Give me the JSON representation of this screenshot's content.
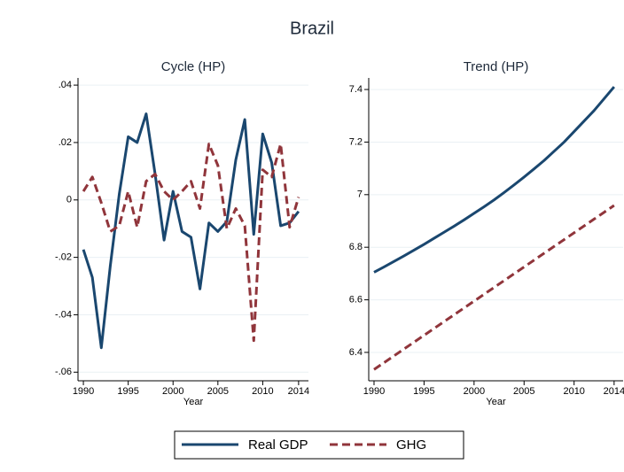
{
  "title": "Brazil",
  "chart_data": [
    {
      "type": "line",
      "title": "Cycle (HP)",
      "x_label": "Year",
      "x": [
        1990,
        1991,
        1992,
        1993,
        1994,
        1995,
        1996,
        1997,
        1998,
        1999,
        2000,
        2001,
        2002,
        2003,
        2004,
        2005,
        2006,
        2007,
        2008,
        2009,
        2010,
        2011,
        2012,
        2013,
        2014
      ],
      "xlim": [
        1989.4,
        2015.1
      ],
      "xticks": [
        1990,
        1995,
        2000,
        2005,
        2010,
        2014
      ],
      "ylim": [
        -0.063,
        0.0425
      ],
      "yticks": [
        {
          "value": -0.06,
          "label": "-.06"
        },
        {
          "value": -0.04,
          "label": "-.04"
        },
        {
          "value": -0.02,
          "label": "-.02"
        },
        0,
        {
          "value": 0.02,
          "label": ".02"
        },
        {
          "value": 0.04,
          "label": ".04"
        }
      ],
      "grid": true,
      "series": [
        {
          "name": "Real GDP",
          "color": "#1a476f",
          "style": "solid",
          "values": [
            -0.0173,
            -0.027,
            -0.0515,
            -0.023,
            0.002,
            0.022,
            0.02,
            0.03,
            0.009,
            -0.014,
            0.003,
            -0.011,
            -0.013,
            -0.031,
            -0.008,
            -0.011,
            -0.0075,
            0.014,
            0.028,
            -0.012,
            0.023,
            0.013,
            -0.009,
            -0.008,
            -0.004
          ]
        },
        {
          "name": "GHG",
          "color": "#90353b",
          "style": "dashed",
          "values": [
            0.003,
            0.008,
            -0.001,
            -0.011,
            -0.009,
            0.003,
            -0.0095,
            0.0065,
            0.009,
            0.003,
            0,
            0.003,
            0.0065,
            -0.003,
            0.0195,
            0.012,
            -0.01,
            -0.003,
            -0.009,
            -0.049,
            0.0105,
            0.008,
            0.0195,
            -0.0095,
            0.001
          ]
        }
      ]
    },
    {
      "type": "line",
      "title": "Trend (HP)",
      "x_label": "Year",
      "x": [
        1990,
        1991,
        1992,
        1993,
        1994,
        1995,
        1996,
        1997,
        1998,
        1999,
        2000,
        2001,
        2002,
        2003,
        2004,
        2005,
        2006,
        2007,
        2008,
        2009,
        2010,
        2011,
        2012,
        2013,
        2014
      ],
      "xlim": [
        1989.47,
        2014.9
      ],
      "xticks": [
        1990,
        1995,
        2000,
        2005,
        2010,
        2014
      ],
      "ylim": [
        6.292,
        7.444
      ],
      "yticks": [
        6.4,
        6.6,
        6.8,
        7,
        7.2,
        7.4
      ],
      "grid": true,
      "series": [
        {
          "name": "Real GDP",
          "color": "#1a476f",
          "style": "solid",
          "values": [
            6.705,
            6.725,
            6.746,
            6.767,
            6.789,
            6.811,
            6.834,
            6.857,
            6.88,
            6.904,
            6.929,
            6.954,
            6.98,
            7.008,
            7.037,
            7.067,
            7.098,
            7.13,
            7.165,
            7.2,
            7.24,
            7.28,
            7.32,
            7.365,
            7.41
          ]
        },
        {
          "name": "GHG",
          "color": "#90353b",
          "style": "dashed",
          "values": [
            6.335,
            6.361,
            6.387,
            6.413,
            6.439,
            6.465,
            6.491,
            6.517,
            6.543,
            6.569,
            6.595,
            6.621,
            6.647,
            6.673,
            6.699,
            6.725,
            6.751,
            6.777,
            6.803,
            6.829,
            6.855,
            6.881,
            6.907,
            6.933,
            6.959
          ]
        }
      ]
    }
  ]
}
